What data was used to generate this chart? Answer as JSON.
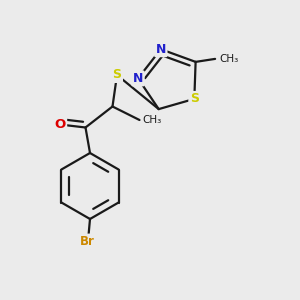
{
  "background_color": "#ebebeb",
  "bond_color": "#1a1a1a",
  "atom_colors": {
    "N": "#2020cc",
    "O": "#dd0000",
    "S": "#cccc00",
    "Br": "#cc8800",
    "C": "#1a1a1a"
  },
  "lw": 1.6,
  "figsize": [
    3.0,
    3.0
  ],
  "dpi": 100
}
